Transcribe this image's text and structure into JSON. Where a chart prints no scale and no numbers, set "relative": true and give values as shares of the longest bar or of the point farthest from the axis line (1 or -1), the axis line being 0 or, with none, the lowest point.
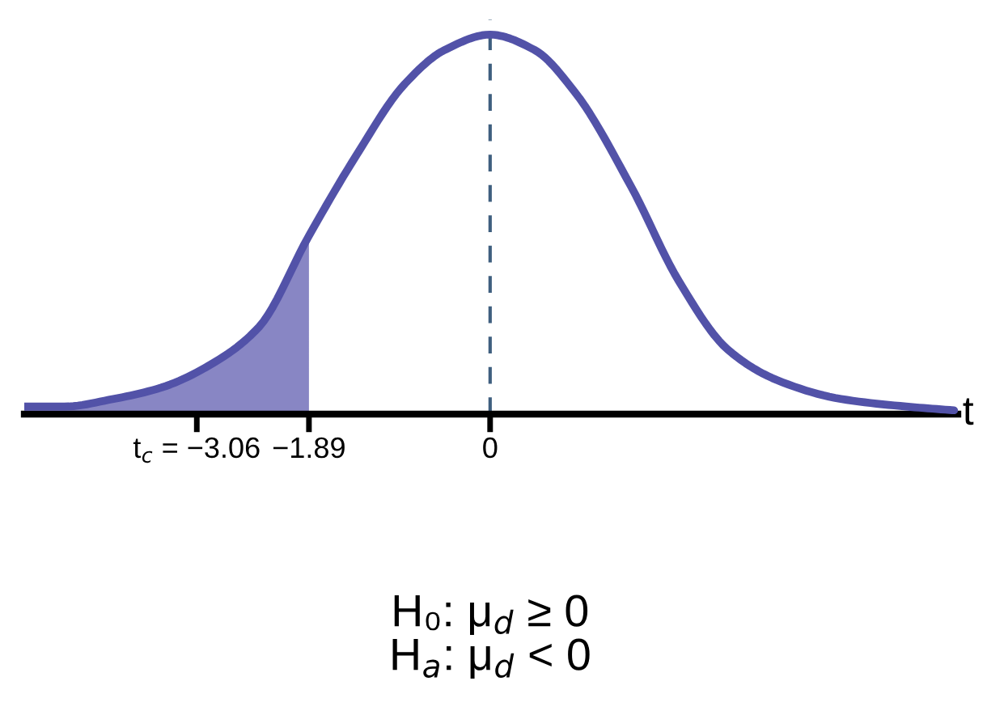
{
  "chart_data": {
    "type": "line",
    "relative": true,
    "xlabel": "t",
    "xlim": [
      -4.86,
      4.88
    ],
    "xticks": [
      {
        "value": -3.06,
        "label": "t$_{c}$ = −3.06"
      },
      -1.89,
      0
    ],
    "series": [
      {
        "color": "#5252a8",
        "x": [
          -4.86,
          -4.44,
          -3.93,
          -3.43,
          -2.92,
          -2.41,
          -1.89,
          -1.4,
          -0.89,
          -0.47,
          0,
          0.46,
          0.88,
          1.47,
          1.97,
          2.48,
          2.99,
          3.66,
          4.34,
          4.84
        ],
        "values": [
          0.02,
          0.02,
          0.04,
          0.07,
          0.13,
          0.23,
          0.47,
          0.68,
          0.87,
          0.96,
          1,
          0.96,
          0.85,
          0.6,
          0.35,
          0.17,
          0.09,
          0.04,
          0.02,
          0.01
        ]
      },
      {
        "type": "area",
        "color": "#8886c4",
        "x": [
          -4.86,
          -4.44,
          -3.93,
          -3.43,
          -2.92,
          -2.41,
          -1.89
        ],
        "values": [
          0.02,
          0.02,
          0.04,
          0.07,
          0.13,
          0.23,
          0.47
        ]
      }
    ],
    "ref_lines": [
      {
        "axis": "x",
        "value": 0,
        "color": "#3f5f7f",
        "line_style": "dashed"
      }
    ],
    "annotations": [
      "H₀: μ$_{d}$ ≥ 0",
      "H$_{a}$: μ$_{d}$ < 0"
    ]
  }
}
